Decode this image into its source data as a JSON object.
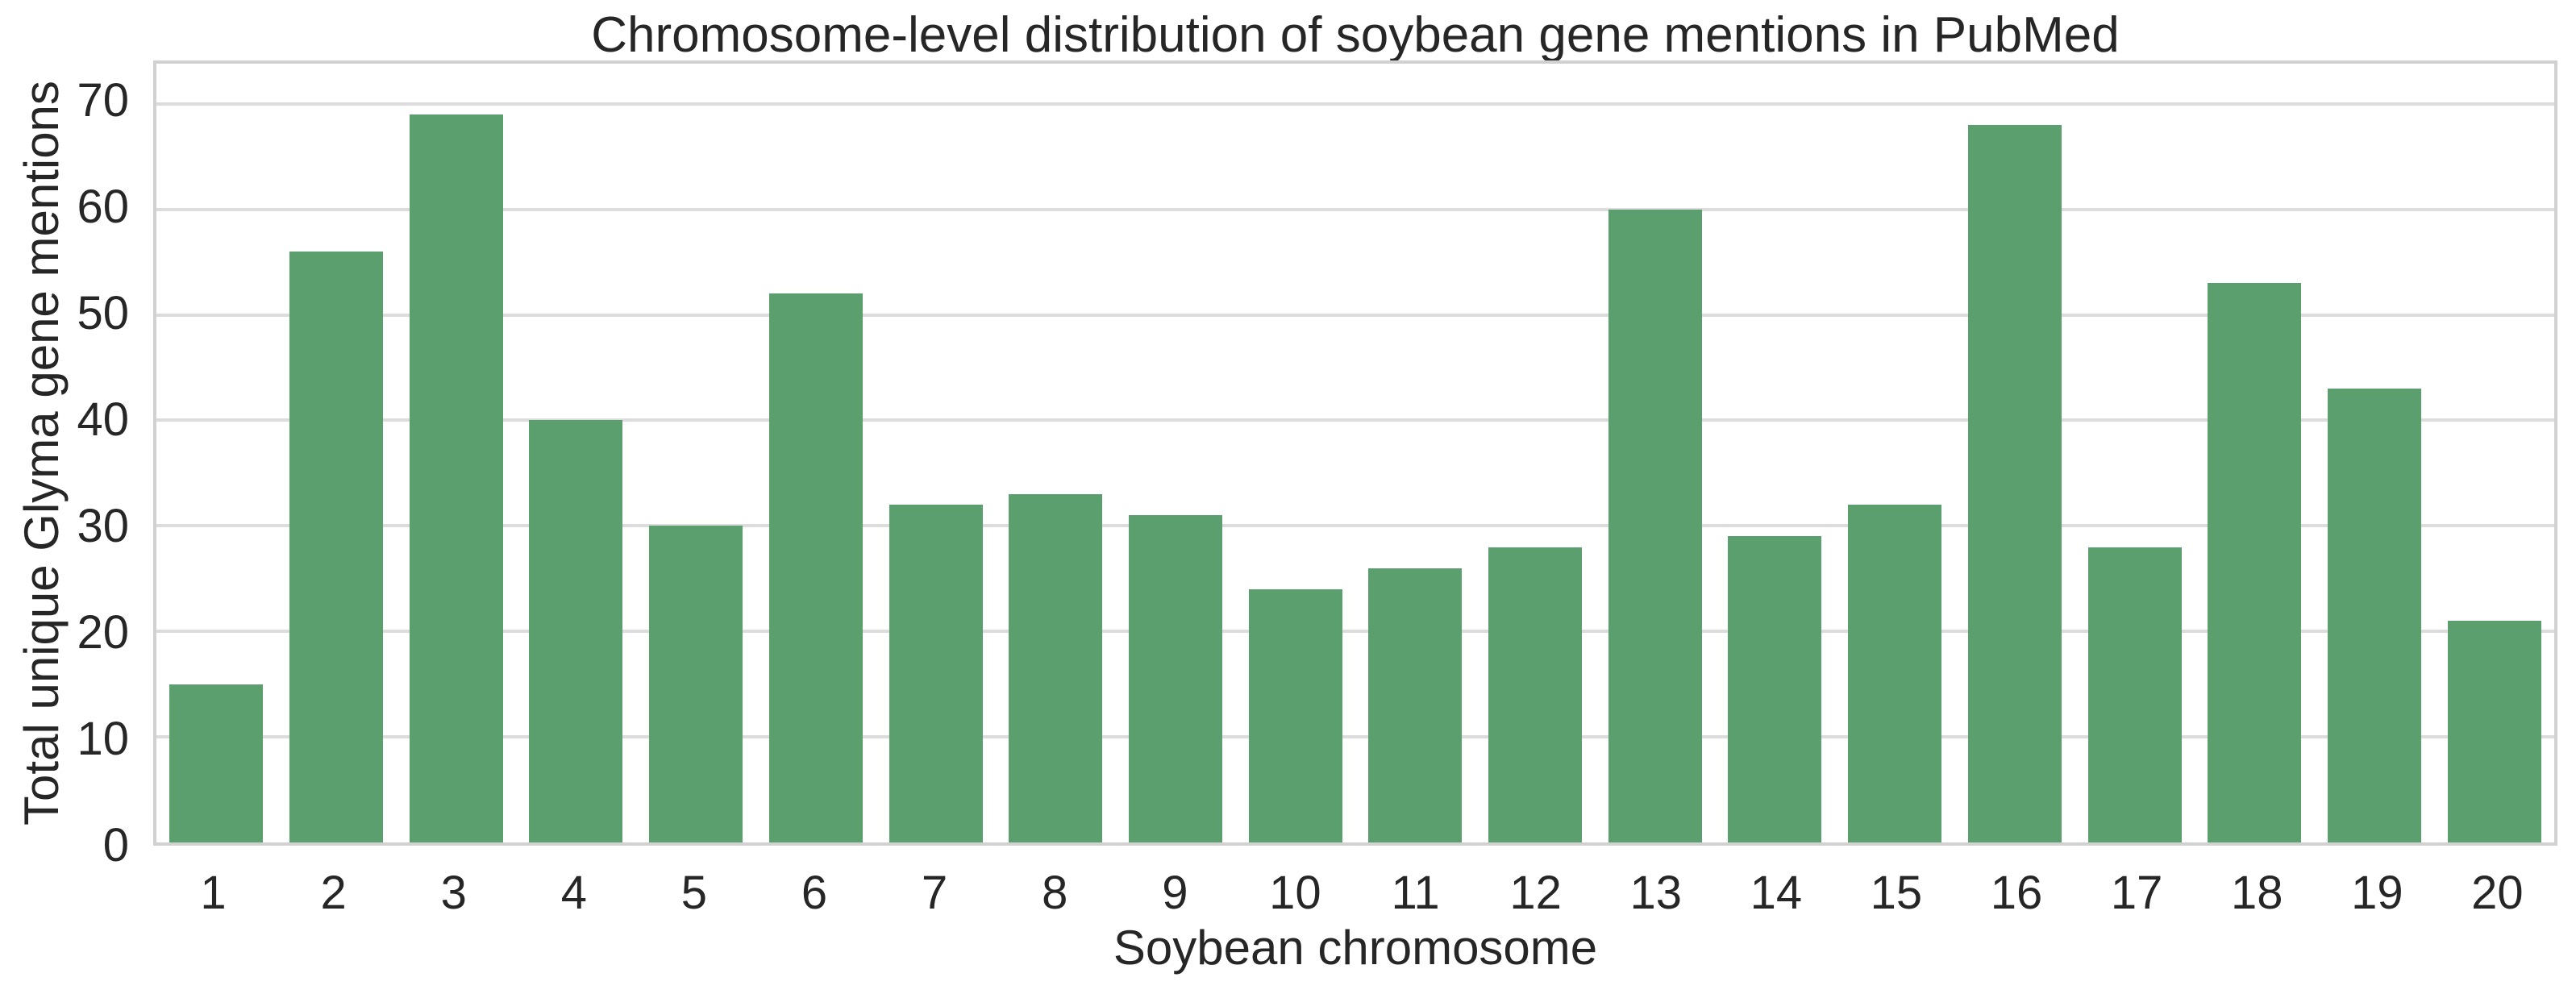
{
  "chart_data": {
    "type": "bar",
    "title": "Chromosome-level distribution of soybean gene mentions in PubMed",
    "xlabel": "Soybean chromosome",
    "ylabel": "Total unique Glyma gene mentions",
    "categories": [
      "1",
      "2",
      "3",
      "4",
      "5",
      "6",
      "7",
      "8",
      "9",
      "10",
      "11",
      "12",
      "13",
      "14",
      "15",
      "16",
      "17",
      "18",
      "19",
      "20"
    ],
    "values": [
      15,
      56,
      69,
      40,
      30,
      52,
      32,
      33,
      31,
      24,
      26,
      28,
      60,
      29,
      32,
      68,
      28,
      53,
      43,
      21
    ],
    "yticks": [
      0,
      10,
      20,
      30,
      40,
      50,
      60,
      70
    ],
    "ylim": [
      0,
      73.8
    ],
    "grid": true,
    "legend": null,
    "bar_width_fraction": 0.78,
    "colors": {
      "bar": "#5C9F6E",
      "grid": "#DCDCDC",
      "spine": "#D1D1D1",
      "text": "#262626",
      "background": "#FFFFFF"
    }
  }
}
